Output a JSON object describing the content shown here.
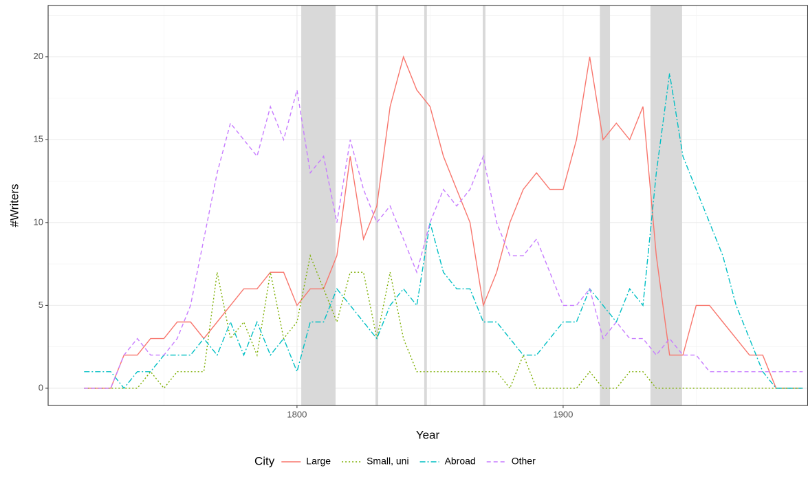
{
  "chart_data": {
    "type": "line",
    "x_label": "Year",
    "y_label": "#Writers",
    "legend_title": "City",
    "x": [
      1720,
      1725,
      1730,
      1735,
      1740,
      1745,
      1750,
      1755,
      1760,
      1765,
      1770,
      1775,
      1780,
      1785,
      1790,
      1795,
      1800,
      1805,
      1810,
      1815,
      1820,
      1825,
      1830,
      1835,
      1840,
      1845,
      1850,
      1855,
      1860,
      1865,
      1870,
      1875,
      1880,
      1885,
      1890,
      1895,
      1900,
      1905,
      1910,
      1915,
      1920,
      1925,
      1930,
      1935,
      1940,
      1945,
      1950,
      1955,
      1960,
      1965,
      1970,
      1975,
      1980,
      1985,
      1990
    ],
    "series": [
      {
        "name": "Large",
        "color": "#F8766D",
        "dash": "solid",
        "values": [
          0,
          0,
          0,
          2,
          2,
          3,
          3,
          4,
          4,
          3,
          4,
          5,
          6,
          6,
          7,
          7,
          5,
          6,
          6,
          8,
          14,
          9,
          11,
          17,
          20,
          18,
          17,
          14,
          12,
          10,
          5,
          7,
          10,
          12,
          13,
          12,
          12,
          15,
          20,
          15,
          16,
          15,
          17,
          8,
          2,
          2,
          5,
          5,
          4,
          3,
          2,
          2,
          0,
          0,
          0
        ]
      },
      {
        "name": "Small, uni",
        "color": "#7CAE00",
        "dash": "dotted",
        "values": [
          0,
          0,
          0,
          0,
          0,
          1,
          0,
          1,
          1,
          1,
          7,
          3,
          4,
          2,
          7,
          3,
          4,
          8,
          6,
          4,
          7,
          7,
          3,
          7,
          3,
          1,
          1,
          1,
          1,
          1,
          1,
          1,
          0,
          2,
          0,
          0,
          0,
          0,
          1,
          0,
          0,
          1,
          1,
          0,
          0,
          0,
          0,
          0,
          0,
          0,
          0,
          0,
          0,
          0,
          0
        ]
      },
      {
        "name": "Abroad",
        "color": "#00BFC4",
        "dash": "dotdash",
        "values": [
          1,
          1,
          1,
          0,
          1,
          1,
          2,
          2,
          2,
          3,
          2,
          4,
          2,
          4,
          2,
          3,
          1,
          4,
          4,
          6,
          5,
          4,
          3,
          5,
          6,
          5,
          10,
          7,
          6,
          6,
          4,
          4,
          3,
          2,
          2,
          3,
          4,
          4,
          6,
          5,
          4,
          6,
          5,
          13,
          19,
          14,
          12,
          10,
          8,
          5,
          3,
          1,
          0,
          0,
          0
        ]
      },
      {
        "name": "Other",
        "color": "#C77CFF",
        "dash": "dashed",
        "values": [
          0,
          0,
          0,
          2,
          3,
          2,
          2,
          3,
          5,
          9,
          13,
          16,
          15,
          14,
          17,
          15,
          18,
          13,
          14,
          10,
          15,
          12,
          10,
          11,
          9,
          7,
          10,
          12,
          11,
          12,
          14,
          10,
          8,
          8,
          9,
          7,
          5,
          5,
          6,
          3,
          4,
          3,
          3,
          2,
          3,
          2,
          2,
          1,
          1,
          1,
          1,
          1,
          1,
          1,
          1
        ]
      }
    ],
    "shaded_periods": [
      [
        1801.6,
        1814.5
      ],
      [
        1829.5,
        1830.5
      ],
      [
        1847.8,
        1848.8
      ],
      [
        1869.8,
        1870.8
      ],
      [
        1913.8,
        1917.6
      ],
      [
        1932.8,
        1944.7
      ]
    ],
    "shade_color": "#d9d9d9",
    "xlim": [
      1706.5,
      1992
    ],
    "ylim": [
      -1.04,
      23.1
    ],
    "xticks": [
      1800,
      1900
    ],
    "yticks": [
      0,
      5,
      10,
      15,
      20
    ],
    "minor_xticks": [
      1750,
      1850,
      1950
    ],
    "minor_yticks": [
      2.5,
      7.5,
      12.5,
      17.5,
      22.5
    ],
    "grid": true,
    "legend_position": "bottom"
  }
}
